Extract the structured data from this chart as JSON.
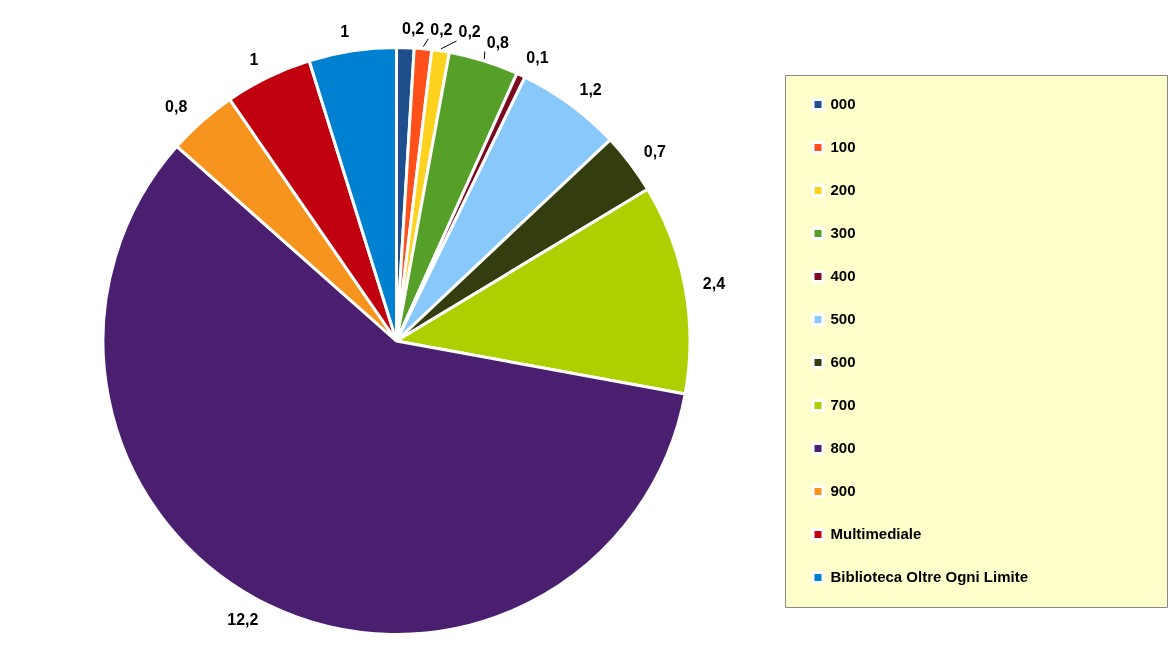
{
  "chart_data": {
    "type": "pie",
    "categories": [
      "000",
      "100",
      "200",
      "300",
      "400",
      "500",
      "600",
      "700",
      "800",
      "900",
      "Multimediale",
      "Biblioteca Oltre Ogni Limite"
    ],
    "values": [
      0.2,
      0.2,
      0.2,
      0.8,
      0.1,
      1.2,
      0.7,
      2.4,
      12.2,
      0.8,
      1,
      1
    ],
    "colors": [
      "#1f4e8c",
      "#ff4f1a",
      "#ffd21f",
      "#56a02a",
      "#7b0a1f",
      "#88c8fa",
      "#333d0d",
      "#afd000",
      "#4b1f6f",
      "#f7941d",
      "#c0000f",
      "#0080d0"
    ],
    "value_labels": [
      "0,2",
      "0,2",
      "0,2",
      "0,8",
      "0,1",
      "1,2",
      "0,7",
      "2,4",
      "12,2",
      "0,8",
      "1",
      "1"
    ],
    "legend": "right"
  }
}
